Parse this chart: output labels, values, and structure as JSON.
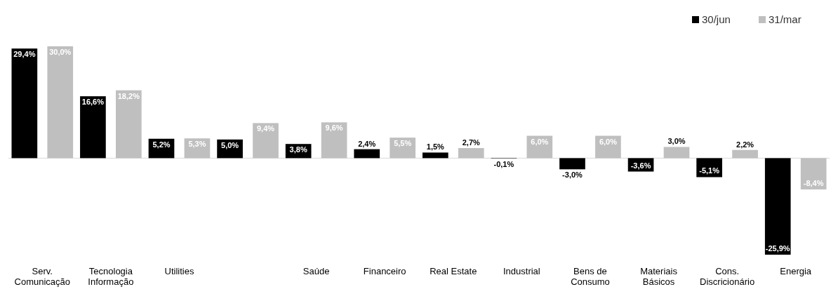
{
  "chart_data": {
    "type": "bar",
    "categories": [
      "Serv. Comunicação",
      "Tecnologia Informação",
      "Utilities",
      null,
      "Saúde",
      "Financeiro",
      "Real Estate",
      "Industrial",
      "Bens de Consumo",
      "Materiais Básicos",
      "Cons. Discricionário",
      "Energia"
    ],
    "series": [
      {
        "name": "30/jun",
        "color": "#000000",
        "values": [
          29.4,
          16.6,
          5.2,
          5.0,
          3.8,
          2.4,
          1.5,
          -0.1,
          -3.0,
          -3.6,
          -5.1,
          -25.9
        ],
        "value_labels": [
          "29,4%",
          "16,6%",
          "5,2%",
          "5,0%",
          "3,8%",
          "2,4%",
          "1,5%",
          "-0,1%",
          "-3,0%",
          "-3,6%",
          "-5,1%",
          "-25,9%"
        ]
      },
      {
        "name": "31/mar",
        "color": "#bfbfbf",
        "values": [
          30.0,
          18.2,
          5.3,
          9.4,
          9.6,
          5.5,
          2.7,
          6.0,
          6.0,
          3.0,
          2.2,
          -8.4
        ],
        "value_labels": [
          "30,0%",
          "18,2%",
          "5,3%",
          "9,4%",
          "9,6%",
          "5,5%",
          "2,7%",
          "6,0%",
          "6,0%",
          "3,0%",
          "2,2%",
          "-8,4%"
        ]
      }
    ],
    "legend": "top right"
  }
}
